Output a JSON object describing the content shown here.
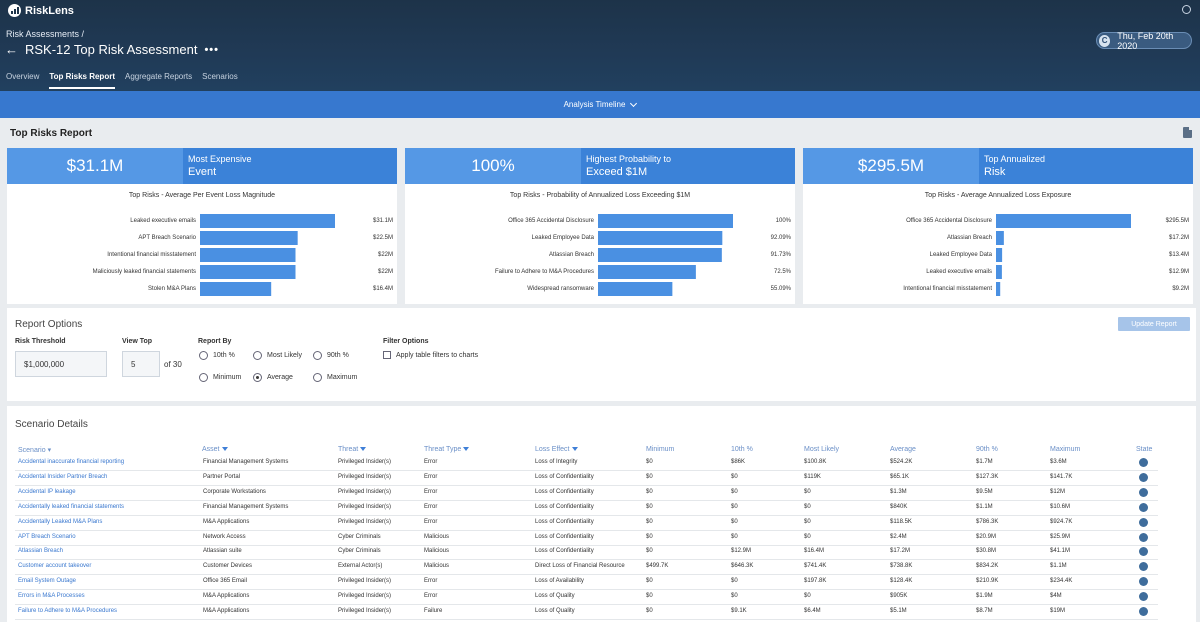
{
  "app": {
    "logo_text": "RiskLens"
  },
  "header": {
    "breadcrumb": "Risk Assessments /",
    "title": "RSK-12 Top Risk Assessment",
    "more": "•••",
    "date_badge_initial": "C",
    "date": "Thu, Feb 20th 2020"
  },
  "tabs": [
    {
      "label": "Overview",
      "active": false
    },
    {
      "label": "Top Risks Report",
      "active": true
    },
    {
      "label": "Aggregate Reports",
      "active": false
    },
    {
      "label": "Scenarios",
      "active": false
    }
  ],
  "timeline": {
    "label": "Analysis Timeline"
  },
  "report": {
    "title": "Top Risks Report"
  },
  "cards": [
    {
      "kpi_value": "$31.1M",
      "kpi_label_1": "Most Expensive",
      "kpi_label_2": "Event",
      "chart_title": "Top Risks - Average Per Event Loss Magnitude",
      "bars": [
        {
          "label": "Leaked executive emails",
          "value": 31.1,
          "text": "$31.1M"
        },
        {
          "label": "APT Breach Scenario",
          "value": 22.5,
          "text": "$22.5M"
        },
        {
          "label": "Intentional financial misstatement",
          "value": 22,
          "text": "$22M"
        },
        {
          "label": "Maliciously leaked financial statements",
          "value": 22,
          "text": "$22M"
        },
        {
          "label": "Stolen M&A Plans",
          "value": 16.4,
          "text": "$16.4M"
        }
      ]
    },
    {
      "kpi_value": "100%",
      "kpi_label_1": "Highest Probability to",
      "kpi_label_2": "Exceed $1M",
      "chart_title": "Top Risks - Probability of Annualized Loss Exceeding $1M",
      "bars": [
        {
          "label": "Office 365 Accidental Disclosure",
          "value": 100,
          "text": "100%"
        },
        {
          "label": "Leaked Employee Data",
          "value": 92.09,
          "text": "92.09%"
        },
        {
          "label": "Atlassian Breach",
          "value": 91.73,
          "text": "91.73%"
        },
        {
          "label": "Failure to Adhere to M&A Procedures",
          "value": 72.5,
          "text": "72.5%"
        },
        {
          "label": "Widespread ransomware",
          "value": 55.09,
          "text": "55.09%"
        }
      ]
    },
    {
      "kpi_value": "$295.5M",
      "kpi_label_1": "Top Annualized",
      "kpi_label_2": "Risk",
      "chart_title": "Top Risks - Average Annualized Loss Exposure",
      "bars": [
        {
          "label": "Office 365 Accidental Disclosure",
          "value": 295.5,
          "text": "$295.5M"
        },
        {
          "label": "Atlassian Breach",
          "value": 17.2,
          "text": "$17.2M"
        },
        {
          "label": "Leaked Employee Data",
          "value": 13.4,
          "text": "$13.4M"
        },
        {
          "label": "Leaked executive emails",
          "value": 12.9,
          "text": "$12.9M"
        },
        {
          "label": "Intentional financial misstatement",
          "value": 9.2,
          "text": "$9.2M"
        }
      ]
    }
  ],
  "options": {
    "title": "Report Options",
    "update_label": "Update Report",
    "risk_threshold_label": "Risk Threshold",
    "risk_threshold_value": "$1,000,000",
    "view_top_label": "View Top",
    "view_top_value": "5",
    "of_total": "of 30",
    "report_by_label": "Report By",
    "report_by": [
      {
        "label": "10th %",
        "selected": false
      },
      {
        "label": "Most Likely",
        "selected": false
      },
      {
        "label": "90th %",
        "selected": false
      },
      {
        "label": "Minimum",
        "selected": false
      },
      {
        "label": "Average",
        "selected": true
      },
      {
        "label": "Maximum",
        "selected": false
      }
    ],
    "filter_label": "Filter Options",
    "filter_checkbox": "Apply table filters to charts"
  },
  "details": {
    "title": "Scenario Details",
    "columns": [
      "Scenario",
      "Asset",
      "Threat",
      "Threat Type",
      "Loss Effect",
      "Minimum",
      "10th %",
      "Most Likely",
      "Average",
      "90th %",
      "Maximum",
      "State"
    ],
    "sort_marker": "▾",
    "rows": [
      [
        "Accidental inaccurate financial reporting",
        "Financial Management Systems",
        "Privileged Insider(s)",
        "Error",
        "Loss of Integrity",
        "$0",
        "$86K",
        "$100.8K",
        "$524.2K",
        "$1.7M",
        "$3.6M"
      ],
      [
        "Accidental Insider Partner Breach",
        "Partner Portal",
        "Privileged Insider(s)",
        "Error",
        "Loss of Confidentiality",
        "$0",
        "$0",
        "$119K",
        "$65.1K",
        "$127.3K",
        "$141.7K"
      ],
      [
        "Accidental IP leakage",
        "Corporate Workstations",
        "Privileged Insider(s)",
        "Error",
        "Loss of Confidentiality",
        "$0",
        "$0",
        "$0",
        "$1.3M",
        "$9.5M",
        "$12M"
      ],
      [
        "Accidentally leaked financial statements",
        "Financial Management Systems",
        "Privileged Insider(s)",
        "Error",
        "Loss of Confidentiality",
        "$0",
        "$0",
        "$0",
        "$840K",
        "$1.1M",
        "$10.6M"
      ],
      [
        "Accidentally Leaked M&A Plans",
        "M&A Applications",
        "Privileged Insider(s)",
        "Error",
        "Loss of Confidentiality",
        "$0",
        "$0",
        "$0",
        "$118.5K",
        "$786.3K",
        "$924.7K"
      ],
      [
        "APT Breach Scenario",
        "Network Access",
        "Cyber Criminals",
        "Malicious",
        "Loss of Confidentiality",
        "$0",
        "$0",
        "$0",
        "$2.4M",
        "$20.9M",
        "$25.9M"
      ],
      [
        "Atlassian Breach",
        "Atlassian suite",
        "Cyber Criminals",
        "Malicious",
        "Loss of Confidentiality",
        "$0",
        "$12.9M",
        "$16.4M",
        "$17.2M",
        "$30.8M",
        "$41.1M"
      ],
      [
        "Customer account takeover",
        "Customer Devices",
        "External Actor(s)",
        "Malicious",
        "Direct Loss of Financial Resource",
        "$499.7K",
        "$646.3K",
        "$741.4K",
        "$738.8K",
        "$834.2K",
        "$1.1M"
      ],
      [
        "Email System Outage",
        "Office 365 Email",
        "Privileged Insider(s)",
        "Error",
        "Loss of Availability",
        "$0",
        "$0",
        "$197.8K",
        "$128.4K",
        "$210.9K",
        "$234.4K"
      ],
      [
        "Errors in M&A Processes",
        "M&A Applications",
        "Privileged Insider(s)",
        "Error",
        "Loss of Quality",
        "$0",
        "$0",
        "$0",
        "$905K",
        "$1.9M",
        "$4M"
      ],
      [
        "Failure to Adhere to M&A Procedures",
        "M&A Applications",
        "Privileged Insider(s)",
        "Failure",
        "Loss of Quality",
        "$0",
        "$9.1K",
        "$6.4M",
        "$5.1M",
        "$8.7M",
        "$19M"
      ]
    ]
  },
  "colors": {
    "bar": "#4a90e2",
    "kpi_value_bg": "#5598e5",
    "kpi_label_bg": "#3b82d8",
    "timeline_bg": "#3778cf"
  }
}
